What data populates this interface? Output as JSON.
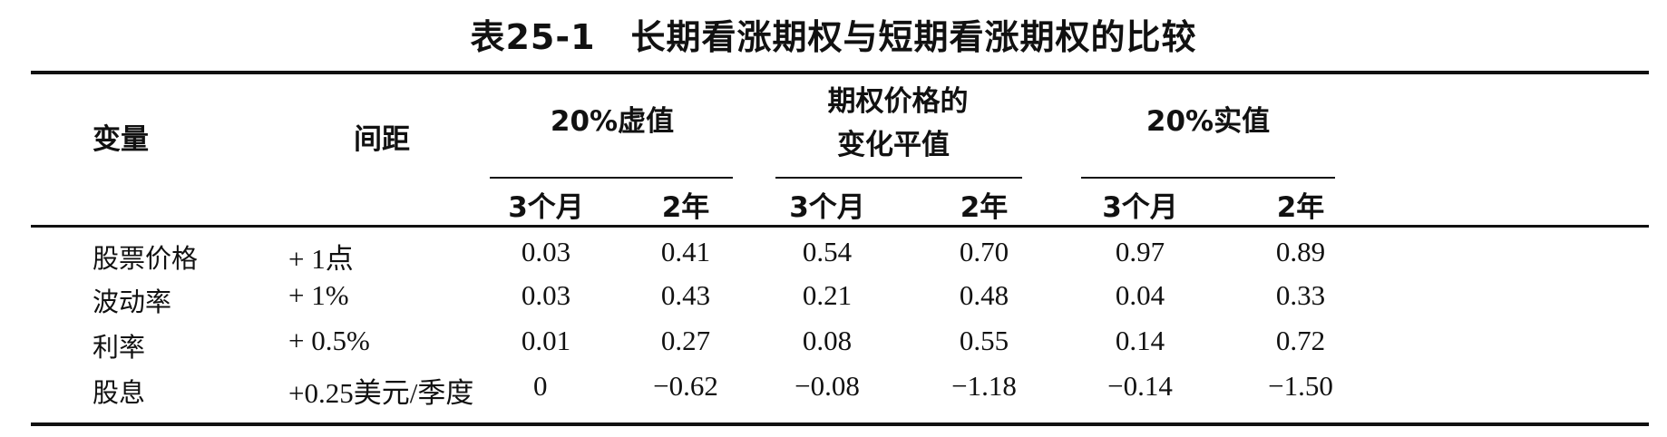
{
  "title": "表25-1　长期看涨期权与短期看涨期权的比较",
  "header": {
    "variable": "变量",
    "interval": "间距",
    "group_otm": "20%虚值",
    "group_atm_line1": "期权价格的",
    "group_atm_line2": "变化平值",
    "group_itm": "20%实值",
    "sub": [
      "3个月",
      "2年",
      "3个月",
      "2年",
      "3个月",
      "2年"
    ]
  },
  "rows": [
    {
      "variable": "股票价格",
      "interval": "+ 1点",
      "values": [
        "0.03",
        "0.41",
        "0.54",
        "0.70",
        "0.97",
        "0.89"
      ]
    },
    {
      "variable": "波动率",
      "interval": "+ 1%",
      "values": [
        "0.03",
        "0.43",
        "0.21",
        "0.48",
        "0.04",
        "0.33"
      ]
    },
    {
      "variable": "利率",
      "interval": "+ 0.5%",
      "values": [
        "0.01",
        "0.27",
        "0.08",
        "0.55",
        "0.14",
        "0.72"
      ]
    },
    {
      "variable": "股息",
      "interval": "+0.25美元/季度",
      "values": [
        "0",
        "−0.62",
        "−0.08",
        "−1.18",
        "−0.14",
        "−1.50"
      ]
    }
  ]
}
